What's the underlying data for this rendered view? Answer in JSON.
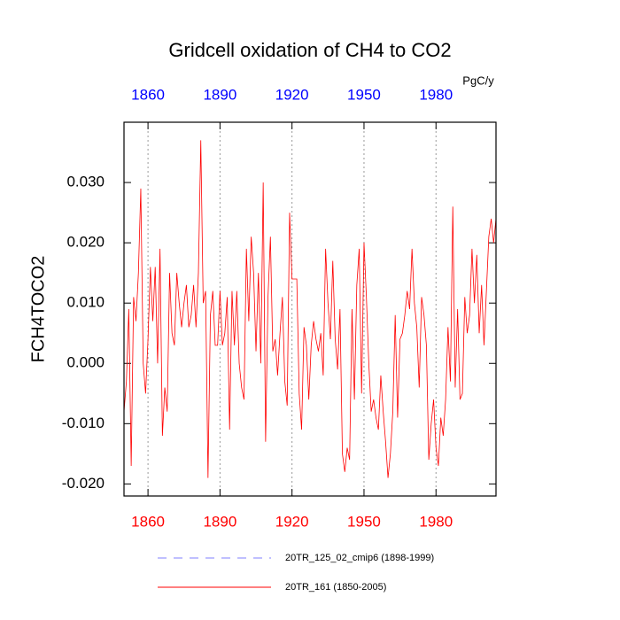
{
  "chart_data": {
    "type": "line",
    "title": "Gridcell oxidation of CH4 to CO2",
    "ylabel": "FCH4TOCO2",
    "units": "PgC/y",
    "xlim": [
      1850,
      2005
    ],
    "ylim": [
      -0.022,
      0.04
    ],
    "xticks": [
      1860,
      1890,
      1920,
      1950,
      1980
    ],
    "yticks": [
      {
        "value": -0.02,
        "label": "-0.020"
      },
      {
        "value": -0.01,
        "label": "-0.010"
      },
      {
        "value": 0,
        "label": "0.000"
      },
      {
        "value": 0.01,
        "label": "0.010"
      },
      {
        "value": 0.02,
        "label": "0.020"
      },
      {
        "value": 0.03,
        "label": "0.030"
      }
    ],
    "grid": "x",
    "bottom_tick_color": "#ff0000",
    "top_tick_color": "#0000ff",
    "legend": [
      {
        "name": "20TR_125_02_cmip6 (1898-1999)",
        "color": "#8080ff",
        "dashed": true
      },
      {
        "name": "20TR_161 (1850-2005)",
        "color": "#ff0000",
        "dashed": false
      }
    ],
    "x": [
      1850,
      1851,
      1852,
      1853,
      1854,
      1855,
      1856,
      1857,
      1858,
      1859,
      1860,
      1861,
      1862,
      1863,
      1864,
      1865,
      1866,
      1867,
      1868,
      1869,
      1870,
      1871,
      1872,
      1873,
      1874,
      1875,
      1876,
      1877,
      1878,
      1879,
      1880,
      1881,
      1882,
      1883,
      1884,
      1885,
      1886,
      1887,
      1888,
      1889,
      1890,
      1891,
      1892,
      1893,
      1894,
      1895,
      1896,
      1897,
      1898,
      1899,
      1900,
      1901,
      1902,
      1903,
      1904,
      1905,
      1906,
      1907,
      1908,
      1909,
      1910,
      1911,
      1912,
      1913,
      1914,
      1915,
      1916,
      1917,
      1918,
      1919,
      1920,
      1921,
      1922,
      1923,
      1924,
      1925,
      1926,
      1927,
      1928,
      1929,
      1930,
      1931,
      1932,
      1933,
      1934,
      1935,
      1936,
      1937,
      1938,
      1939,
      1940,
      1941,
      1942,
      1943,
      1944,
      1945,
      1946,
      1947,
      1948,
      1949,
      1950,
      1951,
      1952,
      1953,
      1954,
      1955,
      1956,
      1957,
      1958,
      1959,
      1960,
      1961,
      1962,
      1963,
      1964,
      1965,
      1966,
      1967,
      1968,
      1969,
      1970,
      1971,
      1972,
      1973,
      1974,
      1975,
      1976,
      1977,
      1978,
      1979,
      1980,
      1981,
      1982,
      1983,
      1984,
      1985,
      1986,
      1987,
      1988,
      1989,
      1990,
      1991,
      1992,
      1993,
      1994,
      1995,
      1996,
      1997,
      1998,
      1999,
      2000,
      2001,
      2002,
      2003,
      2004,
      2005
    ],
    "series": [
      {
        "name": "20TR_161 (1850-2005)",
        "color": "#ff0000",
        "values": [
          -0.008,
          -0.003,
          0.009,
          -0.017,
          0.011,
          0.007,
          0.015,
          0.029,
          0,
          -0.005,
          0.004,
          0.016,
          0.007,
          0.016,
          0,
          0.019,
          -0.012,
          -0.004,
          -0.008,
          0.015,
          0.005,
          0.003,
          0.015,
          0.01,
          0.006,
          0.01,
          0.013,
          0.006,
          0.008,
          0.013,
          0.006,
          0.015,
          0.037,
          0.01,
          0.012,
          -0.019,
          0.008,
          0.012,
          0.003,
          0.003,
          0.012,
          0.003,
          0.005,
          0.011,
          -0.011,
          0.012,
          0.003,
          0.012,
          0,
          -0.004,
          -0.006,
          0.019,
          0.007,
          0.021,
          0.015,
          0.002,
          0.015,
          0,
          0.03,
          -0.013,
          0.011,
          0.021,
          0.002,
          0.004,
          -0.002,
          0.005,
          0.011,
          -0.003,
          -0.007,
          0.025,
          0.014,
          0.014,
          0.014,
          -0.005,
          -0.011,
          0.006,
          0.003,
          -0.006,
          0.003,
          0.007,
          0.004,
          0.002,
          0.005,
          -0.002,
          0.019,
          0.01,
          0.004,
          0.017,
          0.004,
          -0.001,
          0.009,
          -0.015,
          -0.018,
          -0.014,
          -0.016,
          0.009,
          -0.006,
          0.013,
          0.019,
          -0.005,
          0.02,
          0.011,
          0,
          -0.008,
          -0.006,
          -0.009,
          -0.011,
          -0.002,
          -0.008,
          -0.013,
          -0.019,
          -0.015,
          -0.008,
          0.008,
          -0.009,
          0.004,
          0.005,
          0.008,
          0.012,
          0.009,
          0.019,
          0.01,
          0.006,
          -0.004,
          0.011,
          0.008,
          0.003,
          -0.016,
          -0.01,
          -0.006,
          -0.014,
          -0.017,
          -0.009,
          -0.012,
          -0.006,
          0.006,
          -0.003,
          0.026,
          -0.004,
          0.009,
          -0.006,
          -0.005,
          0.011,
          0.005,
          0.008,
          0.019,
          0.01,
          0.018,
          0.005,
          0.013,
          0.003,
          0.012,
          0.021,
          0.024,
          0.02,
          0.024
        ]
      }
    ]
  }
}
